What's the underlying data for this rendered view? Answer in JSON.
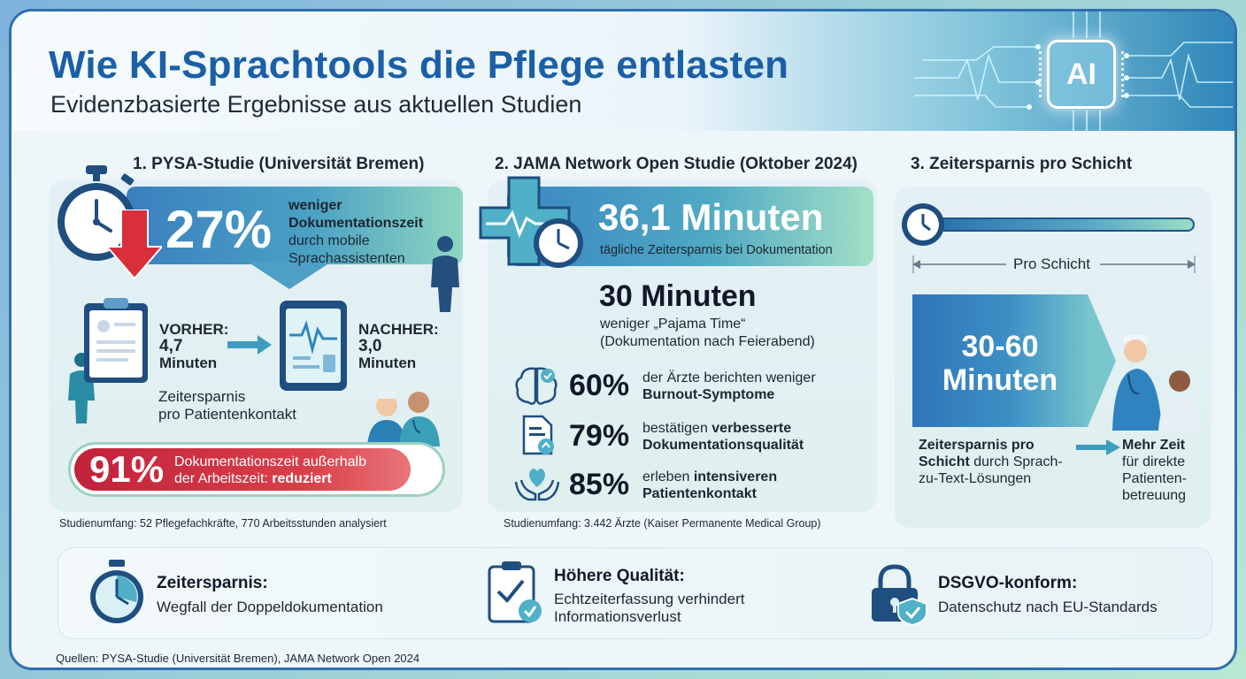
{
  "header": {
    "title": "Wie KI-Sprachtools die Pflege entlasten",
    "subtitle": "Evidenzbasierte Ergebnisse aus aktuellen Studien",
    "ai_chip": "AI"
  },
  "col1": {
    "title": "1. PYSA-Studie (Universität Bremen)",
    "big_value": "27%",
    "banner_text_strong": "weniger Dokumentationszeit",
    "banner_text_rest": "durch mobile Sprachassistenten",
    "vorher_label": "VORHER:",
    "vorher_value": "4,7",
    "vorher_unit": "Minuten",
    "nachher_label": "NACHHER:",
    "nachher_value": "3,0",
    "nachher_unit": "Minuten",
    "per_contact_line1": "Zeitersparnis",
    "per_contact_line2": "pro Patientenkontakt",
    "pill_value": "91%",
    "pill_text_line1": "Dokumentationszeit außerhalb",
    "pill_text_line2_prefix": "der Arbeitszeit: ",
    "pill_text_line2_strong": "reduziert",
    "note": "Studienumfang: 52 Pflegefachkräfte, 770 Arbeitsstunden analysiert"
  },
  "col2": {
    "title": "2. JAMA Network Open Studie (Oktober 2024)",
    "big_value": "36,1 Minuten",
    "big_sub": "tägliche Zeitersparnis bei Dokumentation",
    "second_value": "30 Minuten",
    "second_line1": "weniger „Pajama Time“",
    "second_line2": "(Dokumentation nach Feierabend)",
    "stats": [
      {
        "pct": "60%",
        "line1": "der Ärzte berichten weniger",
        "line2_strong": "Burnout-Symptome",
        "icon": "brain-check-icon"
      },
      {
        "pct": "79%",
        "line1_prefix": "bestätigen ",
        "line1_strong": "verbesserte",
        "line2_strong": "Dokumentationsqualität",
        "icon": "document-upload-icon"
      },
      {
        "pct": "85%",
        "line1_prefix": "erleben ",
        "line1_strong": "intensiveren",
        "line2_strong": "Patientenkontakt",
        "icon": "heart-hands-icon"
      }
    ],
    "note": "Studienumfang: 3.442 Ärzte (Kaiser Permanente Medical Group)"
  },
  "col3": {
    "title": "3. Zeitersparnis pro Schicht",
    "span_label": "Pro Schicht",
    "big_line1": "30-60",
    "big_line2": "Minuten",
    "left_strong1": "Zeitersparnis pro",
    "left_strong2": "Schicht",
    "left_rest2": " durch Sprach-",
    "left_rest3": "zu-Text-Lösungen",
    "right_strong": "Mehr Zeit",
    "right_line2": "für direkte",
    "right_line3": "Patienten-",
    "right_line4": "betreuung"
  },
  "bottom": [
    {
      "heading": "Zeitersparnis:",
      "line1": "Wegfall der Doppeldokumentation",
      "line2": "",
      "icon": "stopwatch-icon"
    },
    {
      "heading": "Höhere Qualität:",
      "line1": "Echtzeiterfassung verhindert",
      "line2": "Informationsverlust",
      "icon": "clipboard-check-icon"
    },
    {
      "heading": "DSGVO-konform:",
      "line1": "Datenschutz nach EU-Standards",
      "line2": "",
      "icon": "lock-shield-icon"
    }
  ],
  "sources": "Quellen: PYSA-Studie (Universität Bremen), JAMA Network Open 2024",
  "colors": {
    "title_blue": "#1b5fa6",
    "accent_teal": "#4ba1c4",
    "alert_red": "#c2213a",
    "text_dark": "#1e2633"
  }
}
